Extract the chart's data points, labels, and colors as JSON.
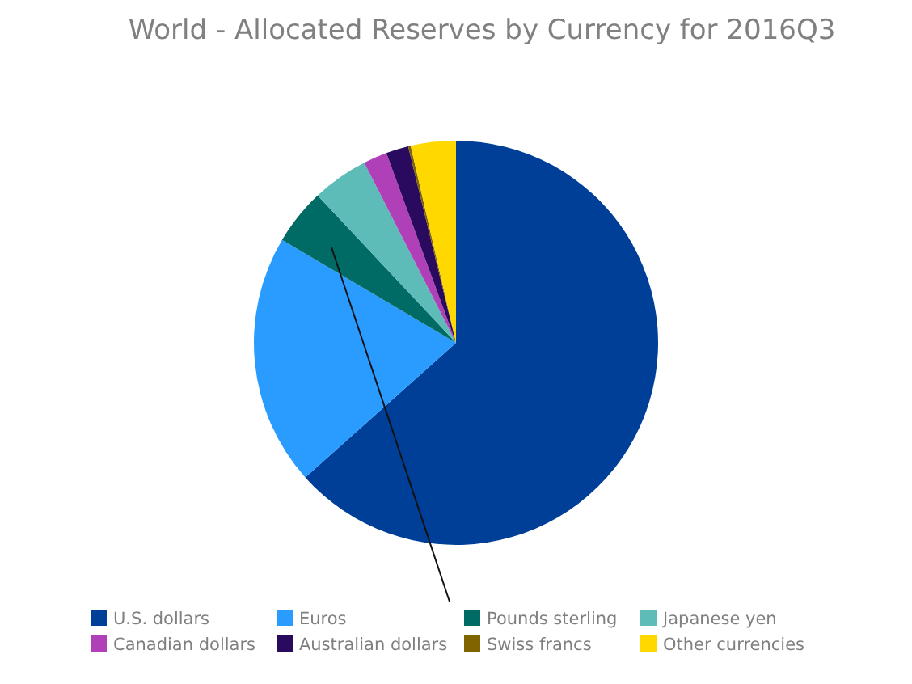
{
  "chart_data": {
    "type": "pie",
    "title": "World - Allocated Reserves by Currency for 2016Q3",
    "categories": [
      "U.S. dollars",
      "Euros",
      "Pounds sterling",
      "Japanese yen",
      "Canadian dollars",
      "Australian dollars",
      "Swiss francs",
      "Other currencies"
    ],
    "values": [
      63.4,
      20.1,
      4.5,
      4.5,
      1.9,
      1.8,
      0.2,
      3.6
    ],
    "colors": [
      "#003f98",
      "#2b9cff",
      "#006b65",
      "#5ebcb8",
      "#b040b8",
      "#2a0a5e",
      "#806400",
      "#ffd800"
    ],
    "legend": "bottom"
  }
}
